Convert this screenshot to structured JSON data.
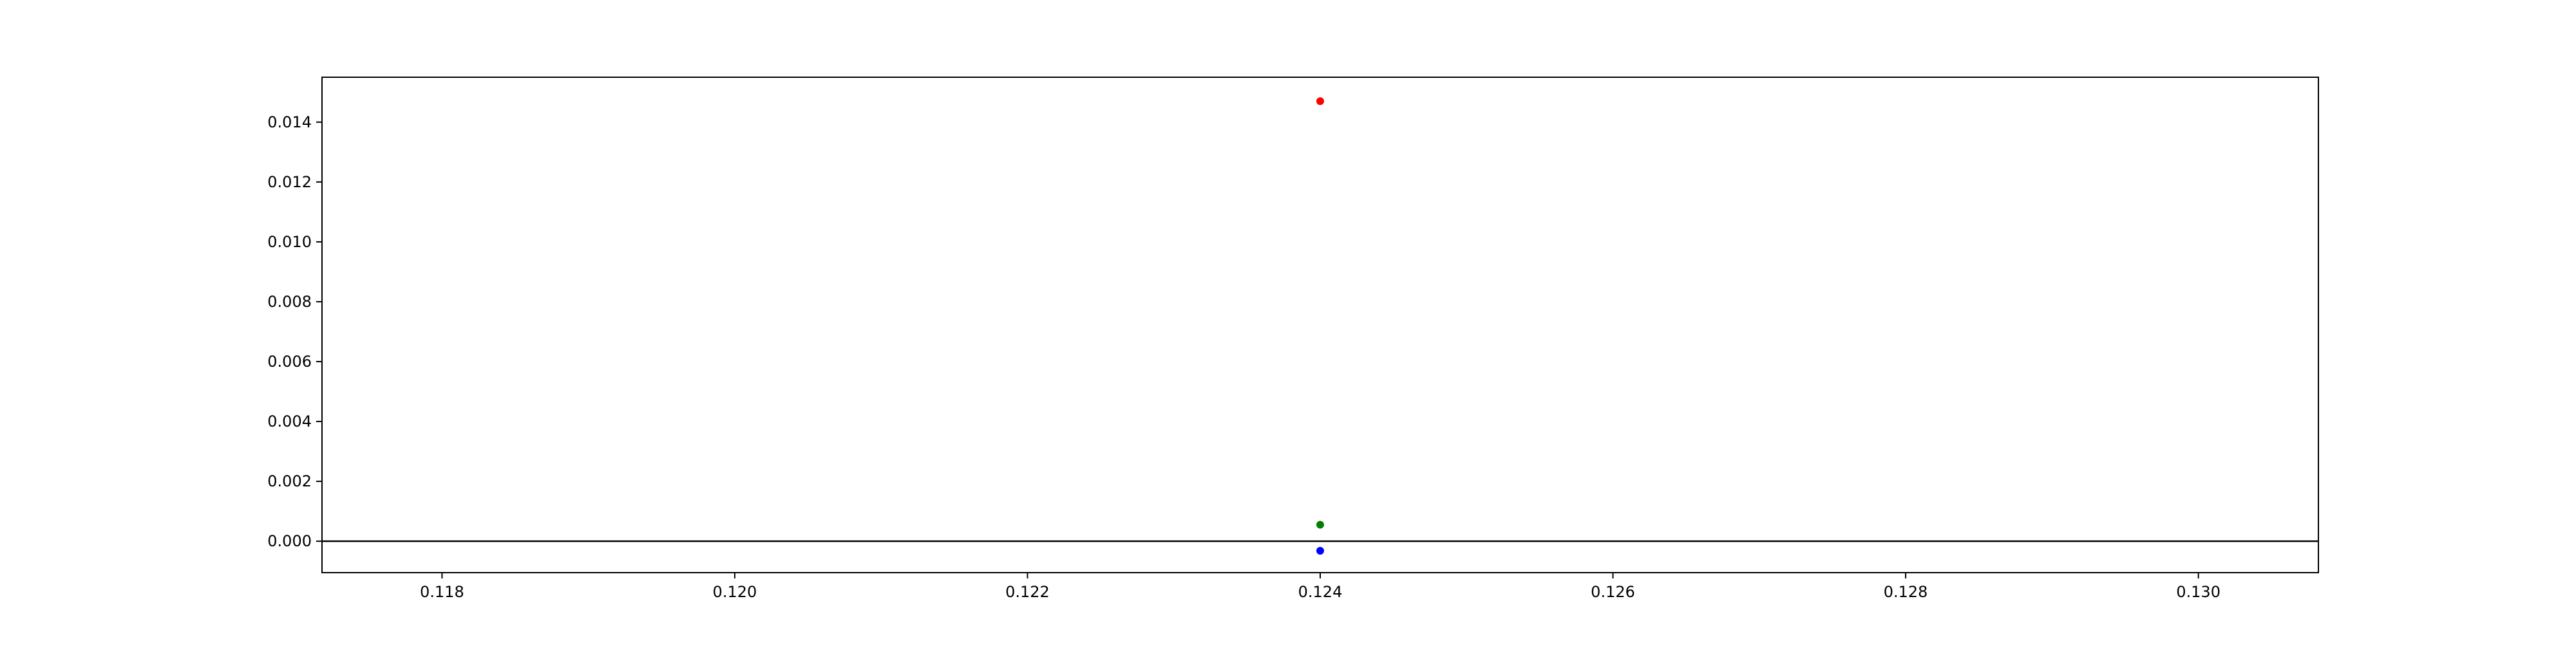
{
  "chart_data": {
    "type": "scatter",
    "xlim": [
      0.11718,
      0.13082
    ],
    "ylim": [
      -0.00105,
      0.0155
    ],
    "x_ticks": [
      0.118,
      0.12,
      0.122,
      0.124,
      0.126,
      0.128,
      0.13
    ],
    "x_tick_labels": [
      "0.118",
      "0.120",
      "0.122",
      "0.124",
      "0.126",
      "0.128",
      "0.130"
    ],
    "y_ticks": [
      0.0,
      0.002,
      0.004,
      0.006,
      0.008,
      0.01,
      0.012,
      0.014
    ],
    "y_tick_labels": [
      "0.000",
      "0.002",
      "0.004",
      "0.006",
      "0.008",
      "0.010",
      "0.012",
      "0.014"
    ],
    "reference_line_y": 0.0,
    "grid": false,
    "points": [
      {
        "x": 0.124,
        "y": 0.0147,
        "color": "#ff0000"
      },
      {
        "x": 0.124,
        "y": 0.00055,
        "color": "#008000"
      },
      {
        "x": 0.124,
        "y": -0.00032,
        "color": "#0000ff"
      }
    ],
    "colors": {
      "axes": "#000000",
      "reference_line": "#000000",
      "background": "#ffffff"
    }
  }
}
